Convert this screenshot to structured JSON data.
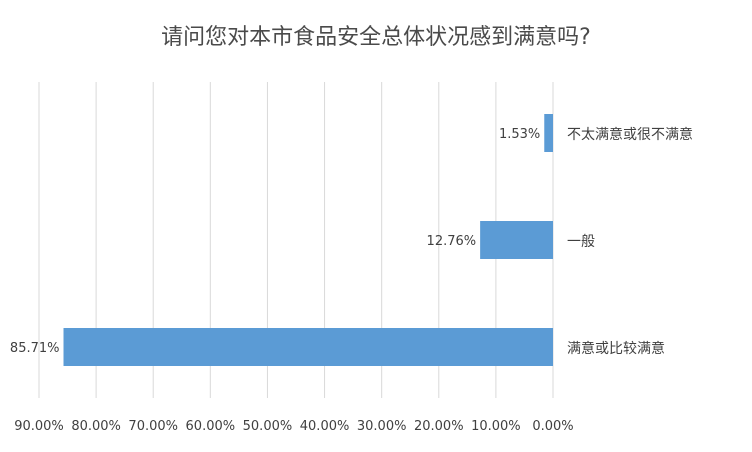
{
  "chart_data": {
    "type": "bar",
    "orientation": "horizontal",
    "axis_direction": "reversed",
    "title": "请问您对本市食品安全总体状况感到满意吗?",
    "categories": [
      "不太满意或很不满意",
      "一般",
      "满意或比较满意"
    ],
    "values": [
      1.53,
      12.76,
      85.71
    ],
    "value_labels": [
      "1.53%",
      "12.76%",
      "85.71%"
    ],
    "xlim": [
      0,
      90
    ],
    "x_ticks": [
      0,
      10,
      20,
      30,
      40,
      50,
      60,
      70,
      80,
      90
    ],
    "x_tick_labels": [
      "0.00%",
      "10.00%",
      "20.00%",
      "30.00%",
      "40.00%",
      "50.00%",
      "60.00%",
      "70.00%",
      "80.00%",
      "90.00%"
    ],
    "grid": true,
    "legend": "none",
    "colors": {
      "bar": "#5b9bd5",
      "grid": "#d9d9d9",
      "text": "#404040"
    }
  }
}
